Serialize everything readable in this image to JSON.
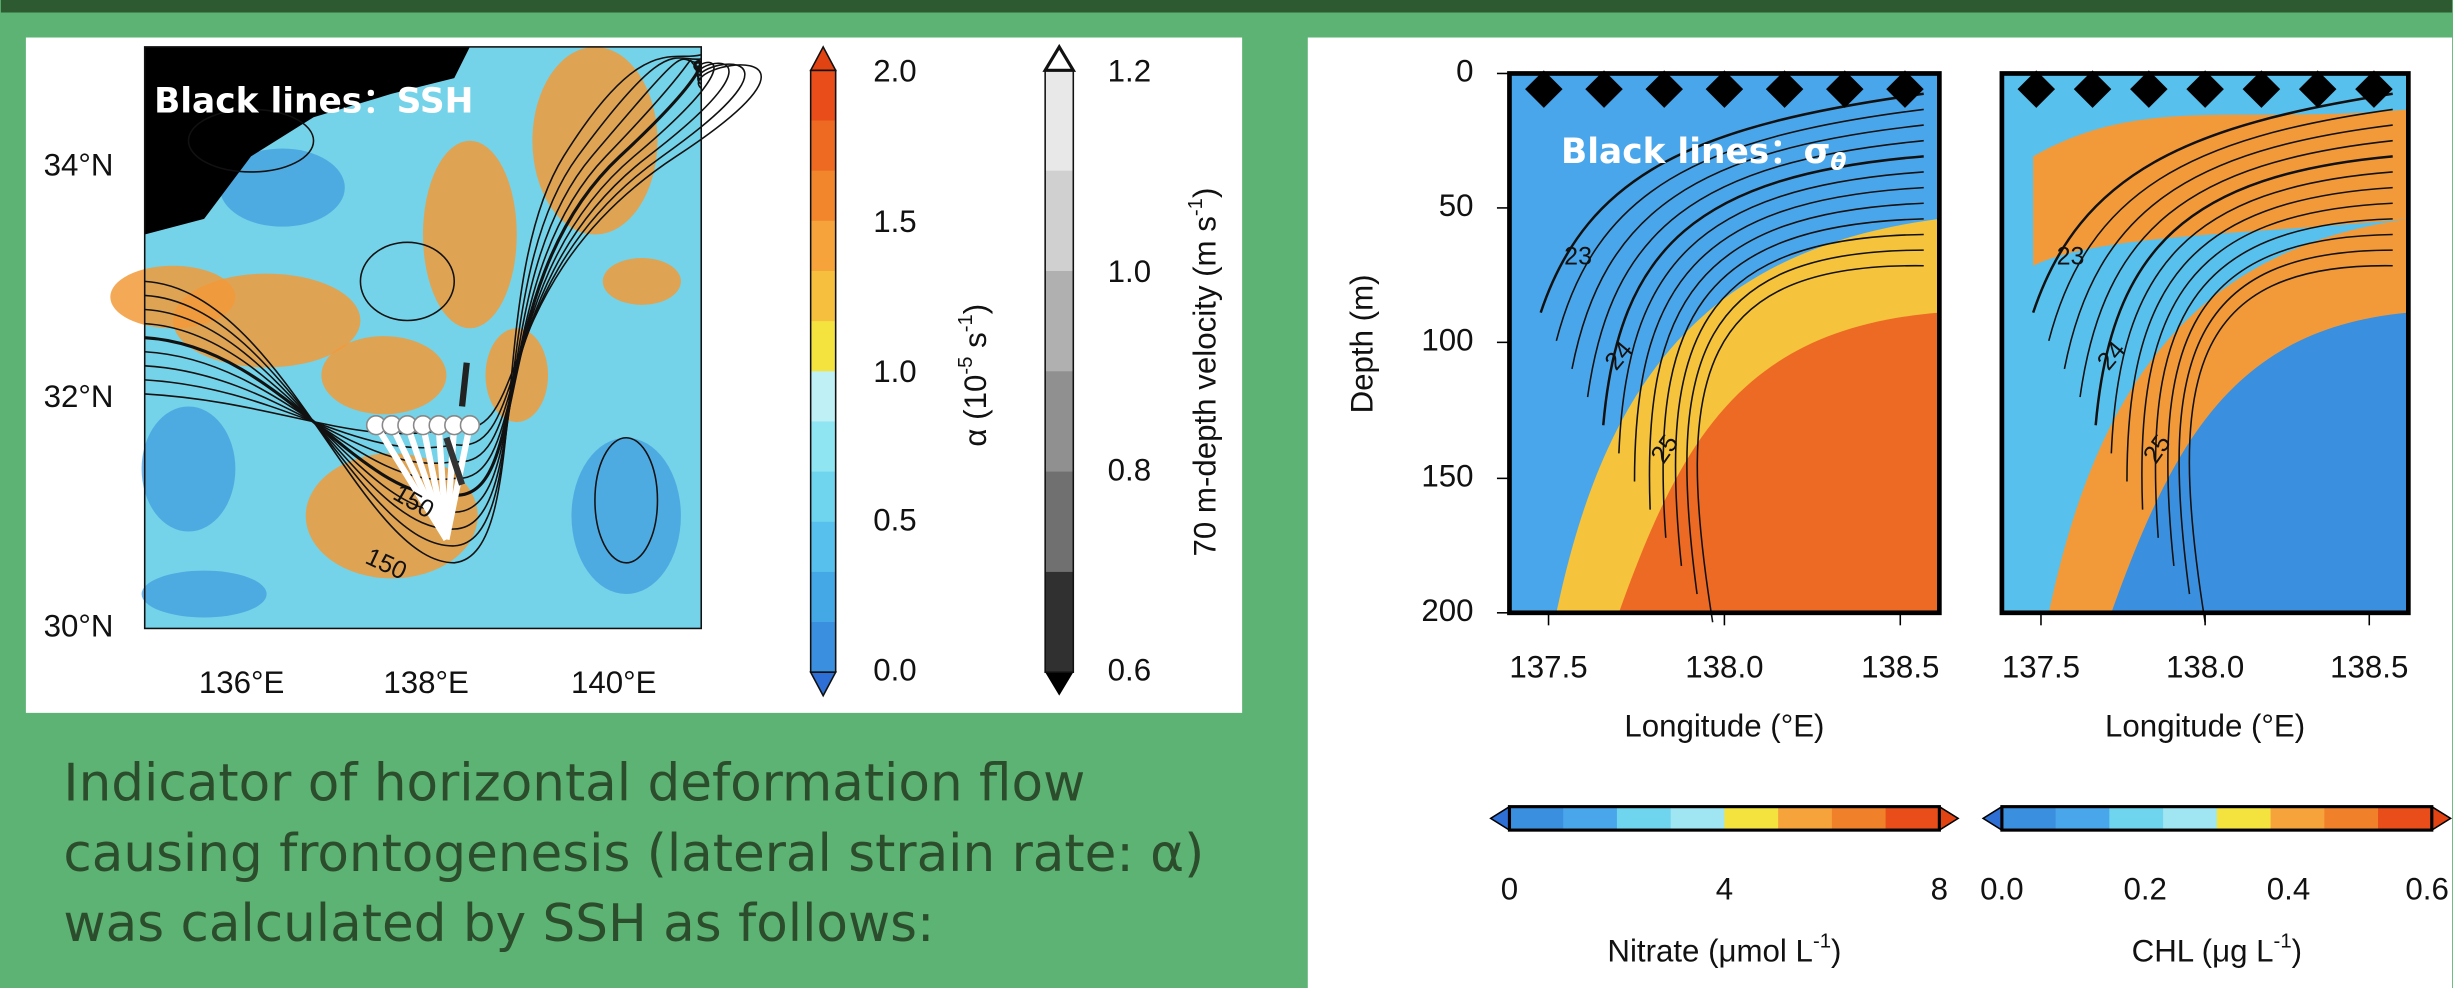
{
  "left_figure": {
    "annotation": "Black lines：SSH",
    "y_axis_labels": [
      "34°N",
      "32°N",
      "30°N"
    ],
    "x_axis_labels": [
      "136°E",
      "138°E",
      "140°E"
    ],
    "contour_labels": [
      "150",
      "150"
    ],
    "alpha_colorbar": {
      "ticks": [
        "2.0",
        "1.5",
        "1.0",
        "0.5",
        "0.0"
      ],
      "label": {
        "main": "α (10",
        "sup1": "-5",
        "mid": " s",
        "sup2": "-1",
        "end": ")"
      }
    },
    "velocity_colorbar": {
      "ticks": [
        "1.2",
        "1.0",
        "0.8",
        "0.6"
      ],
      "label": {
        "main": "70 m-depth velocity (m s",
        "sup": "-1",
        "end": ")"
      }
    }
  },
  "body_text": [
    "Indicator of horizontal deformation flow",
    "causing frontogenesis (lateral strain rate: α)",
    "was calculated by SSH as follows:"
  ],
  "right_figure": {
    "y_axis_title": "Depth (m)",
    "y_axis_labels": [
      "0",
      "50",
      "100",
      "150",
      "200"
    ],
    "annotation": {
      "main": "Black lines：σ",
      "sub": "θ"
    },
    "panels": [
      {
        "x_axis_labels": [
          "137.5",
          "138.0",
          "138.5"
        ],
        "x_axis_title": "Longitude (°E)",
        "contour_labels": [
          "23",
          "24",
          "25"
        ],
        "colorbar_ticks": [
          "0",
          "4",
          "8"
        ],
        "colorbar_label": {
          "main": "Nitrate (μmol L",
          "sup": "-1",
          "end": ")"
        }
      },
      {
        "x_axis_labels": [
          "137.5",
          "138.0",
          "138.5"
        ],
        "x_axis_title": "Longitude (°E)",
        "contour_labels": [
          "23",
          "24",
          "25"
        ],
        "colorbar_ticks": [
          "0.0",
          "0.2",
          "0.4",
          "0.6"
        ],
        "colorbar_label": {
          "main": "CHL (μg L",
          "sup": "-1",
          "end": ")"
        }
      }
    ]
  }
}
